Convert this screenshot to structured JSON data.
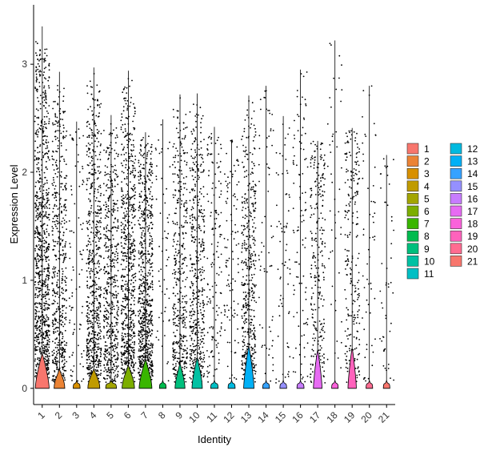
{
  "chart_data": {
    "type": "violin",
    "title": "",
    "xlabel": "Identity",
    "ylabel": "Expression Level",
    "ylim": [
      -0.15,
      3.55
    ],
    "yticks": [
      0,
      1,
      2,
      3
    ],
    "grid": false,
    "legend_position": "right",
    "categories": [
      "1",
      "2",
      "3",
      "4",
      "5",
      "6",
      "7",
      "8",
      "9",
      "10",
      "11",
      "12",
      "13",
      "14",
      "15",
      "16",
      "17",
      "18",
      "19",
      "20",
      "21"
    ],
    "series": [
      {
        "name": "1",
        "color": "#F8766D",
        "max": 3.35,
        "mode": 0.0,
        "density": 1.0,
        "spread": 0.75
      },
      {
        "name": "2",
        "color": "#EB8335",
        "max": 2.93,
        "mode": 0.0,
        "density": 0.55,
        "spread": 0.35
      },
      {
        "name": "3",
        "color": "#D89000",
        "max": 2.47,
        "mode": 0.0,
        "density": 0.08,
        "spread": 0.05
      },
      {
        "name": "4",
        "color": "#C09B00",
        "max": 2.97,
        "mode": 0.0,
        "density": 0.7,
        "spread": 0.35
      },
      {
        "name": "5",
        "color": "#A3A500",
        "max": 2.53,
        "mode": 0.0,
        "density": 0.55,
        "spread": 0.05
      },
      {
        "name": "6",
        "color": "#7CAE00",
        "max": 2.94,
        "mode": 0.0,
        "density": 0.75,
        "spread": 0.45
      },
      {
        "name": "7",
        "color": "#39B600",
        "max": 2.37,
        "mode": 0.0,
        "density": 0.8,
        "spread": 0.6
      },
      {
        "name": "8",
        "color": "#00BB4E",
        "max": 2.49,
        "mode": 0.0,
        "density": 0.05,
        "spread": 0.05
      },
      {
        "name": "9",
        "color": "#00BF7D",
        "max": 2.72,
        "mode": 0.0,
        "density": 0.45,
        "spread": 0.5
      },
      {
        "name": "10",
        "color": "#00C1A3",
        "max": 2.73,
        "mode": 0.0,
        "density": 0.5,
        "spread": 0.65
      },
      {
        "name": "11",
        "color": "#00BFC4",
        "max": 2.42,
        "mode": 0.0,
        "density": 0.15,
        "spread": 0.05
      },
      {
        "name": "12",
        "color": "#00BAE0",
        "max": 2.3,
        "mode": 0.0,
        "density": 0.1,
        "spread": 0.05
      },
      {
        "name": "13",
        "color": "#00B0F6",
        "max": 2.71,
        "mode": 0.0,
        "density": 0.5,
        "spread": 0.95
      },
      {
        "name": "14",
        "color": "#35A2FF",
        "max": 2.8,
        "mode": 0.0,
        "density": 0.06,
        "spread": 0.05
      },
      {
        "name": "15",
        "color": "#9590FF",
        "max": 2.52,
        "mode": 0.0,
        "density": 0.06,
        "spread": 0.05
      },
      {
        "name": "16",
        "color": "#C77CFF",
        "max": 2.95,
        "mode": 0.0,
        "density": 0.1,
        "spread": 0.05
      },
      {
        "name": "17",
        "color": "#E76BF3",
        "max": 2.29,
        "mode": 0.0,
        "density": 0.28,
        "spread": 0.85
      },
      {
        "name": "18",
        "color": "#FA62DB",
        "max": 3.22,
        "mode": 0.0,
        "density": 0.04,
        "spread": 0.05
      },
      {
        "name": "19",
        "color": "#FF62BC",
        "max": 2.41,
        "mode": 0.0,
        "density": 0.25,
        "spread": 0.9
      },
      {
        "name": "20",
        "color": "#FF6C91",
        "max": 2.8,
        "mode": 0.0,
        "density": 0.05,
        "spread": 0.05
      },
      {
        "name": "21",
        "color": "#F8766D",
        "max": 2.16,
        "mode": 0.0,
        "density": 0.04,
        "spread": 0.05
      }
    ]
  }
}
